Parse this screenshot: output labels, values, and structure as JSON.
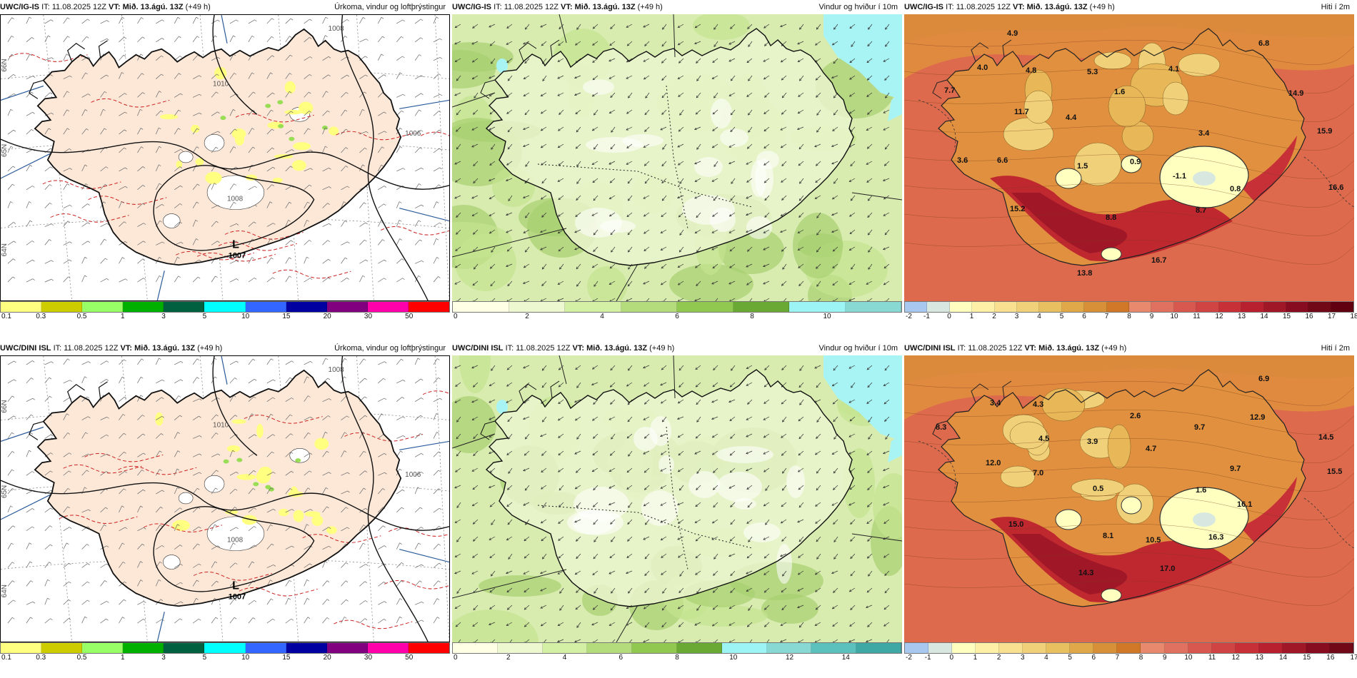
{
  "issue_time": "IT: 11.08.2025 12Z",
  "valid_label": "VT:",
  "valid_time": "Mið. 13.ágú. 13Z",
  "lead": "(+49 h)",
  "models": {
    "top": "UWC/IG-IS",
    "bottom": "UWC/DINI ISL"
  },
  "fields": {
    "precip": "Úrkoma, vindur og loftþrýstingur",
    "wind": "Vindur og hviður í 10m",
    "temp": "Hiti í 2m"
  },
  "precip_colorbar": {
    "colors": [
      "#ffff80",
      "#cccc00",
      "#99ff66",
      "#00b000",
      "#006040",
      "#00ffff",
      "#3366ff",
      "#0000a0",
      "#800080",
      "#ff00aa",
      "#ff0000"
    ],
    "ticks": [
      "0.1",
      "0.3",
      "0.5",
      "1",
      "3",
      "5",
      "10",
      "15",
      "20",
      "30",
      "50"
    ]
  },
  "wind_colorbar_top": {
    "colors": [
      "#ffffe6",
      "#eef8d0",
      "#d4f0a4",
      "#b4dc7c",
      "#90c850",
      "#6aaa34",
      "#9cf4f4",
      "#88d8d4"
    ],
    "ticks": [
      "0",
      "2",
      "4",
      "6",
      "8",
      "10"
    ]
  },
  "wind_colorbar_bottom": {
    "colors": [
      "#ffffe6",
      "#eef8d0",
      "#d4f0a4",
      "#b4dc7c",
      "#90c850",
      "#6aaa34",
      "#9cf4f4",
      "#88d8d4",
      "#5cc0bc",
      "#40a8a4"
    ],
    "ticks": [
      "0",
      "2",
      "4",
      "6",
      "8",
      "10",
      "12",
      "14"
    ]
  },
  "temp_colorbar_top": {
    "colors": [
      "#a8c8f0",
      "#d8e8e0",
      "#ffffc0",
      "#fff0a8",
      "#f8e090",
      "#f0d078",
      "#e8c060",
      "#e0a848",
      "#d89038",
      "#d07828",
      "#e8886c",
      "#e07060",
      "#d85850",
      "#d04444",
      "#c83038",
      "#b82030",
      "#a01828",
      "#880c20",
      "#700818",
      "#600010"
    ],
    "ticks": [
      "-2",
      "-1",
      "0",
      "1",
      "2",
      "3",
      "4",
      "5",
      "6",
      "7",
      "8",
      "9",
      "10",
      "11",
      "12",
      "13",
      "14",
      "15",
      "16",
      "17",
      "18"
    ]
  },
  "temp_colorbar_bottom": {
    "colors": [
      "#a8c8f0",
      "#d8e8e0",
      "#ffffc0",
      "#fff0a8",
      "#f8e090",
      "#f0d078",
      "#e8c060",
      "#e0a848",
      "#d89038",
      "#d07828",
      "#e8886c",
      "#e07060",
      "#d85850",
      "#d04444",
      "#c83038",
      "#b82030",
      "#a01828",
      "#880c20",
      "#700818"
    ],
    "ticks": [
      "-2",
      "-1",
      "0",
      "1",
      "2",
      "3",
      "4",
      "5",
      "6",
      "7",
      "8",
      "9",
      "10",
      "11",
      "12",
      "13",
      "14",
      "15",
      "16",
      "17"
    ]
  },
  "pressure_labels": [
    "1008",
    "1010",
    "1006",
    "1008"
  ],
  "low_center": {
    "letter": "L",
    "value": "1007"
  },
  "temp_labels_top": [
    "4.9",
    "6.8",
    "4.0",
    "4.8",
    "5.3",
    "4.1",
    "7.7",
    "1.6",
    "14.9",
    "11.7",
    "4.4",
    "3.4",
    "15.9",
    "3.6",
    "6.6",
    "1.5",
    "0.9",
    "-1.1",
    "16.6",
    "0.8",
    "15.2",
    "8.7",
    "8.8",
    "16.7",
    "13.8"
  ],
  "temp_labels_bottom": [
    "6.9",
    "3.4",
    "4.3",
    "2.6",
    "9.7",
    "12.9",
    "8.3",
    "4.5",
    "3.9",
    "4.7",
    "14.5",
    "12.0",
    "7.0",
    "9.7",
    "15.5",
    "0.5",
    "1.6",
    "16.1",
    "15.0",
    "8.1",
    "10.5",
    "16.3",
    "17.0",
    "14.3"
  ],
  "low_label_bottom": {
    "letter": "L",
    "value": "1007"
  },
  "lat_labels": [
    "66N",
    "65N",
    "64N"
  ],
  "colors": {
    "land_fill": "#fde8d8",
    "sea_fill": "#ffffff",
    "coast": "#111111",
    "isobar": "#111111",
    "precip_contour": "#cc2222",
    "grid": "#888888",
    "meridian_blue": "#2a5a9a",
    "wind_base": "#d8ecb0",
    "wind_land": "#eaf5cc",
    "temp_sea": "#dd6a4c"
  }
}
